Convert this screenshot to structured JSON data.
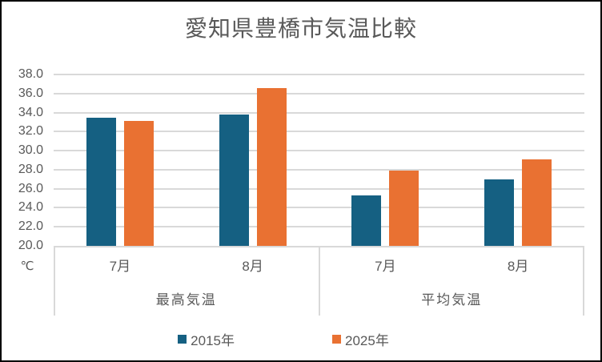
{
  "colors": {
    "series_2015": "#156082",
    "series_2025": "#E97132",
    "gridline": "#D9D9D9",
    "axis_line": "#D9D9D9",
    "text": "#595959",
    "frame_border": "#000000",
    "background": "#FFFFFF"
  },
  "chart_data": {
    "type": "bar",
    "title": "愛知県豊橋市気温比較",
    "xlabel": "",
    "ylabel": "℃",
    "ylim": [
      20.0,
      38.0
    ],
    "ytick_step": 2.0,
    "ytick_labels": [
      "38.0",
      "36.0",
      "34.0",
      "32.0",
      "30.0",
      "28.0",
      "26.0",
      "24.0",
      "22.0",
      "20.0"
    ],
    "grid": true,
    "legend_position": "bottom",
    "group_labels": [
      "最高気温",
      "平均気温"
    ],
    "group_ids": [
      "max-temp",
      "avg-temp"
    ],
    "categories": [
      "最高気温 7月",
      "最高気温 8月",
      "平均気温 7月",
      "平均気温 8月"
    ],
    "category_months": [
      "7月",
      "8月",
      "7月",
      "8月"
    ],
    "category_ids": [
      "max-temp-jul",
      "max-temp-aug",
      "avg-temp-jul",
      "avg-temp-aug"
    ],
    "series": [
      {
        "name": "2015年",
        "id": "2015",
        "color": "#156082",
        "values": [
          33.5,
          33.8,
          25.3,
          27.0
        ]
      },
      {
        "name": "2025年",
        "id": "2025",
        "color": "#E97132",
        "values": [
          33.1,
          36.6,
          27.9,
          29.1
        ]
      }
    ]
  }
}
